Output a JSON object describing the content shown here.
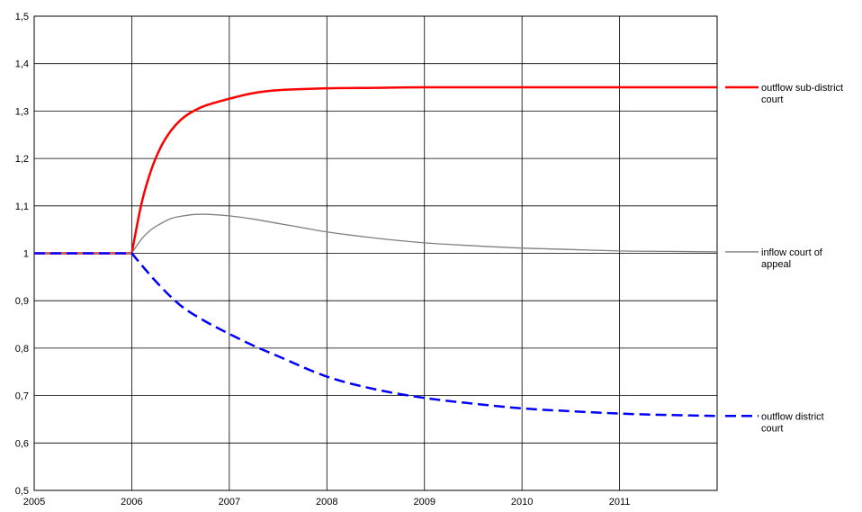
{
  "chart_data": {
    "type": "line",
    "title": "",
    "xlabel": "",
    "ylabel": "",
    "xlim": [
      2005,
      2012
    ],
    "ylim": [
      0.5,
      1.5
    ],
    "x_ticks": [
      "2005",
      "2006",
      "2007",
      "2008",
      "2009",
      "2010",
      "2011"
    ],
    "y_ticks": [
      "0,5",
      "0,6",
      "0,7",
      "0,8",
      "0,9",
      "1",
      "1,1",
      "1,2",
      "1,3",
      "1,4",
      "1,5"
    ],
    "grid": true,
    "legend_position": "right",
    "series": [
      {
        "name": "outflow sub-district court",
        "color": "#ff0000",
        "style": "solid",
        "x": [
          2005,
          2006,
          2006.1,
          2006.2,
          2006.3,
          2006.4,
          2006.5,
          2006.6,
          2006.75,
          2007,
          2007.25,
          2007.5,
          2008,
          2008.5,
          2009,
          2010,
          2011,
          2012
        ],
        "y": [
          1.0,
          1.0,
          1.105,
          1.176,
          1.225,
          1.258,
          1.281,
          1.296,
          1.311,
          1.326,
          1.338,
          1.344,
          1.348,
          1.349,
          1.35,
          1.35,
          1.35,
          1.35
        ]
      },
      {
        "name": "inflow court of appeal",
        "color": "#7f7f7f",
        "style": "solid",
        "x": [
          2005,
          2006,
          2006.1,
          2006.2,
          2006.3,
          2006.4,
          2006.5,
          2006.65,
          2006.8,
          2007,
          2007.25,
          2007.5,
          2007.75,
          2008,
          2008.5,
          2009,
          2009.5,
          2010,
          2010.5,
          2011,
          2011.5,
          2012
        ],
        "y": [
          1.0,
          1.0,
          1.03,
          1.05,
          1.063,
          1.073,
          1.078,
          1.082,
          1.082,
          1.079,
          1.072,
          1.063,
          1.054,
          1.045,
          1.032,
          1.022,
          1.016,
          1.011,
          1.008,
          1.005,
          1.004,
          1.003
        ]
      },
      {
        "name": "outflow district court",
        "color": "#0000ff",
        "style": "dashed",
        "x": [
          2005,
          2006,
          2006.25,
          2006.5,
          2006.75,
          2007,
          2007.25,
          2007.5,
          2008,
          2008.5,
          2009,
          2009.5,
          2010,
          2010.5,
          2011,
          2011.5,
          2012
        ],
        "y": [
          1.0,
          1.0,
          0.94,
          0.89,
          0.857,
          0.83,
          0.805,
          0.783,
          0.74,
          0.713,
          0.695,
          0.683,
          0.673,
          0.667,
          0.662,
          0.659,
          0.657
        ]
      }
    ]
  }
}
